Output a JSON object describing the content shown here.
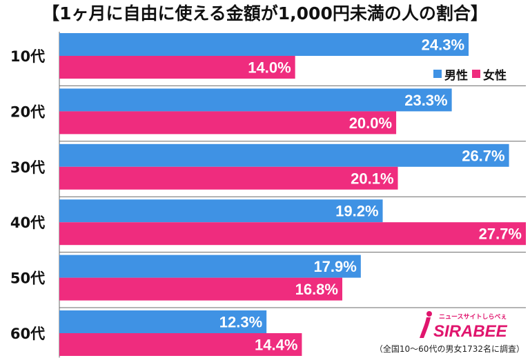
{
  "title": "【1ヶ月に自由に使える金額が1,000円未満の人の割合】",
  "legend": {
    "male": "男性",
    "female": "女性"
  },
  "colors": {
    "male": "#3f92e4",
    "female": "#ef2c7e",
    "gridline": "#6a6a6a"
  },
  "footnote": "（全国10～60代の男女1732名に調査）",
  "logo": {
    "brand": "SIRABEE",
    "tagline": "ニュースサイトしらべぇ",
    "icon": "sirabee-logo-icon"
  },
  "chart_data": {
    "type": "bar",
    "orientation": "horizontal",
    "categories": [
      "10代",
      "20代",
      "30代",
      "40代",
      "50代",
      "60代"
    ],
    "series": [
      {
        "name": "男性",
        "values": [
          24.3,
          23.3,
          26.7,
          19.2,
          17.9,
          12.3
        ],
        "labels": [
          "24.3%",
          "23.3%",
          "26.7%",
          "19.2%",
          "17.9%",
          "12.3%"
        ]
      },
      {
        "name": "女性",
        "values": [
          14.0,
          20.0,
          20.1,
          27.7,
          16.8,
          14.4
        ],
        "labels": [
          "14.0%",
          "20.0%",
          "20.1%",
          "27.7%",
          "16.8%",
          "14.4%"
        ]
      }
    ],
    "xlim": [
      0,
      27.7
    ],
    "grid": false,
    "legend_position": "top-right"
  }
}
